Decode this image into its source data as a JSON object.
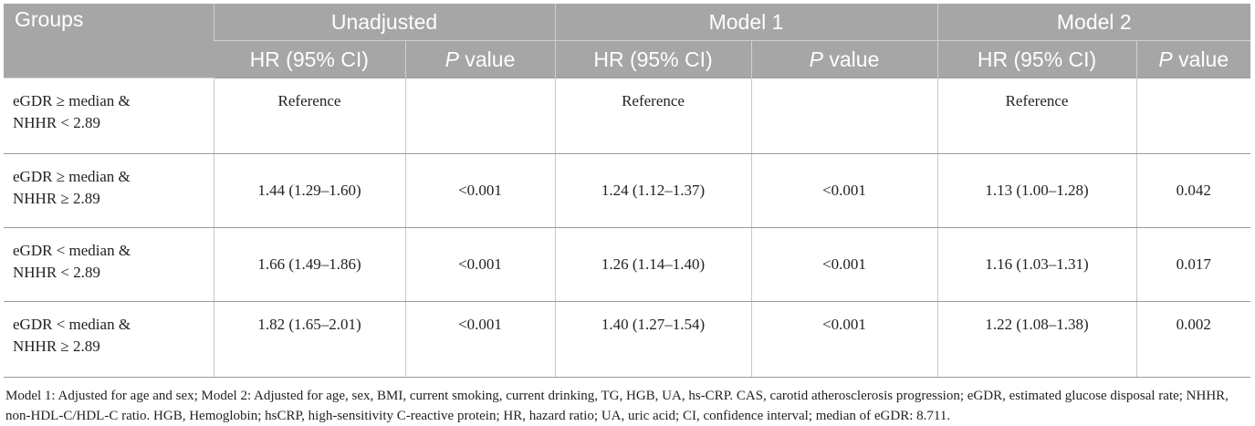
{
  "header": {
    "groups": "Groups",
    "models": [
      "Unadjusted",
      "Model 1",
      "Model 2"
    ],
    "hr_label": "HR (95% CI)",
    "p_italic": "P",
    "p_rest": " value"
  },
  "rows": [
    {
      "group_line1": "eGDR ≥ median &",
      "group_line2": "NHHR < 2.89",
      "unadj_hr": "Reference",
      "unadj_p": "",
      "m1_hr": "Reference",
      "m1_p": "",
      "m2_hr": "Reference",
      "m2_p": ""
    },
    {
      "group_line1": "eGDR ≥ median &",
      "group_line2": "NHHR ≥ 2.89",
      "unadj_hr": "1.44 (1.29–1.60)",
      "unadj_p": "<0.001",
      "m1_hr": "1.24 (1.12–1.37)",
      "m1_p": "<0.001",
      "m2_hr": "1.13 (1.00–1.28)",
      "m2_p": "0.042"
    },
    {
      "group_line1": "eGDR < median &",
      "group_line2": "NHHR < 2.89",
      "unadj_hr": "1.66 (1.49–1.86)",
      "unadj_p": "<0.001",
      "m1_hr": "1.26 (1.14–1.40)",
      "m1_p": "<0.001",
      "m2_hr": "1.16 (1.03–1.31)",
      "m2_p": "0.017"
    },
    {
      "group_line1": "eGDR < median &",
      "group_line2": "NHHR ≥ 2.89",
      "unadj_hr": "1.82 (1.65–2.01)",
      "unadj_p": "<0.001",
      "m1_hr": "1.40 (1.27–1.54)",
      "m1_p": "<0.001",
      "m2_hr": "1.22 (1.08–1.38)",
      "m2_p": "0.002"
    }
  ],
  "footnote": "Model 1: Adjusted for age and sex; Model 2: Adjusted for age, sex, BMI, current smoking, current drinking, TG, HGB, UA, hs-CRP. CAS, carotid atherosclerosis progression; eGDR, estimated glucose disposal rate; NHHR, non-HDL-C/HDL-C ratio. HGB, Hemoglobin; hsCRP, high-sensitivity C-reactive protein; HR, hazard ratio; UA, uric acid; CI, confidence interval; median of eGDR: 8.711.",
  "colors": {
    "header_bg": "#a6a6a6",
    "header_text": "#ffffff",
    "rule": "#9a9a9a"
  }
}
